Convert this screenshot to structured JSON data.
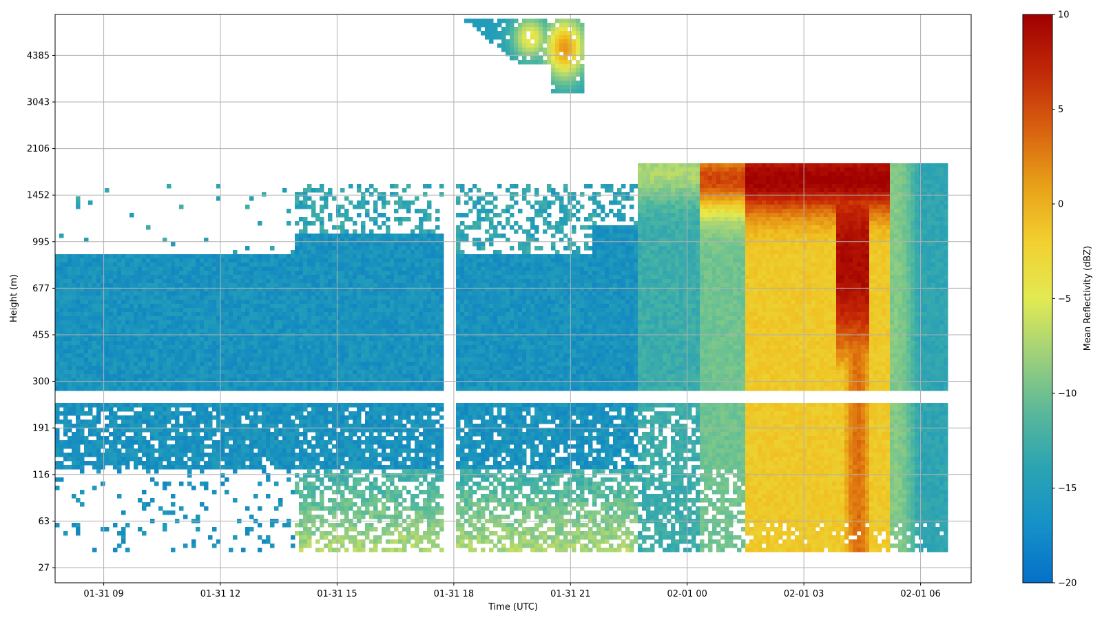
{
  "chart_data": {
    "type": "heatmap",
    "title": "",
    "xlabel": "Time (UTC)",
    "ylabel": "Height (m)",
    "x_ticks": [
      "01-31 09",
      "01-31 12",
      "01-31 15",
      "01-31 18",
      "01-31 21",
      "02-01 00",
      "02-01 03",
      "02-01 06"
    ],
    "x_range_hours": [
      7.75,
      31.3
    ],
    "y_ticks": [
      "27",
      "63",
      "116",
      "191",
      "300",
      "455",
      "677",
      "995",
      "1452",
      "2106",
      "3043",
      "4385"
    ],
    "grid": true,
    "colorbar": {
      "label": "Mean Reflectivity (dBZ)",
      "min": -20,
      "max": 10,
      "ticks": [
        "10",
        "5",
        "0",
        "−5",
        "−10",
        "−15",
        "−20"
      ],
      "colors": [
        "#0570c8",
        "#1f9bbb",
        "#50b89e",
        "#a0d27a",
        "#e6ea4c",
        "#f0c020",
        "#e07a10",
        "#c82a05",
        "#a00000"
      ]
    },
    "features": [
      {
        "region": "boundary-layer echo",
        "time_start_h": 7.75,
        "time_end_h": 18.0,
        "height_top_m": 850,
        "dbz": -16
      },
      {
        "region": "upper cloud",
        "time_start_h": 19.5,
        "time_end_h": 21.6,
        "height_range_m": [
          3043,
          6000
        ],
        "dbz_peak": 1
      },
      {
        "region": "precipitating deep layer",
        "time_start_h": 24.6,
        "time_end_h": 31.3,
        "height_top_m": 1800,
        "dbz_peak": 10
      }
    ]
  }
}
